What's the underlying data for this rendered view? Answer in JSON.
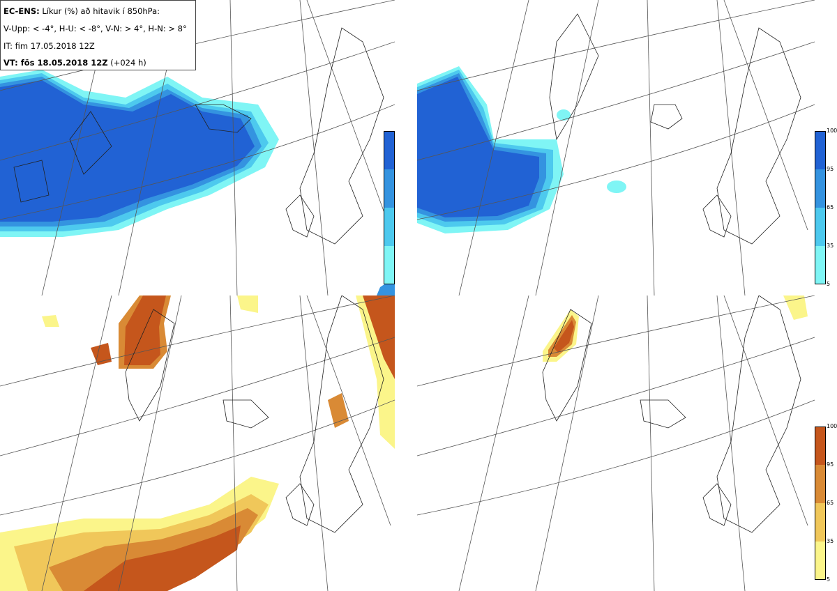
{
  "info": {
    "line1_bold": "EC-ENS:",
    "line1_rest": " Líkur (%) að hitavik í 850hPa:",
    "line2": "V-Upp: < -4°, H-U: < -8°, V-N: > 4°, H-N: > 8°",
    "line3": "IT: fim 17.05.2018 12Z",
    "line4_bold": "VT: fös 18.05.2018 12Z",
    "line4_rest": " (+024 h)"
  },
  "colorbar_ticks": [
    "100",
    "95",
    "65",
    "35",
    "5"
  ],
  "colors": {
    "blue": [
      "#7ff5f5",
      "#4dc9ee",
      "#3493e0",
      "#2162d4"
    ],
    "orange": [
      "#fbf58a",
      "#f0c75a",
      "#d98a35",
      "#c5561c"
    ],
    "coast": "#222222",
    "grid": "#555555"
  },
  "panels": [
    {
      "name": "top-left",
      "palette": "blue",
      "label": "V-Upp"
    },
    {
      "name": "top-right",
      "palette": "blue",
      "label": "H-U"
    },
    {
      "name": "bottom-left",
      "palette": "orange",
      "label": "V-N"
    },
    {
      "name": "bottom-right",
      "palette": "orange",
      "label": "H-N"
    }
  ]
}
